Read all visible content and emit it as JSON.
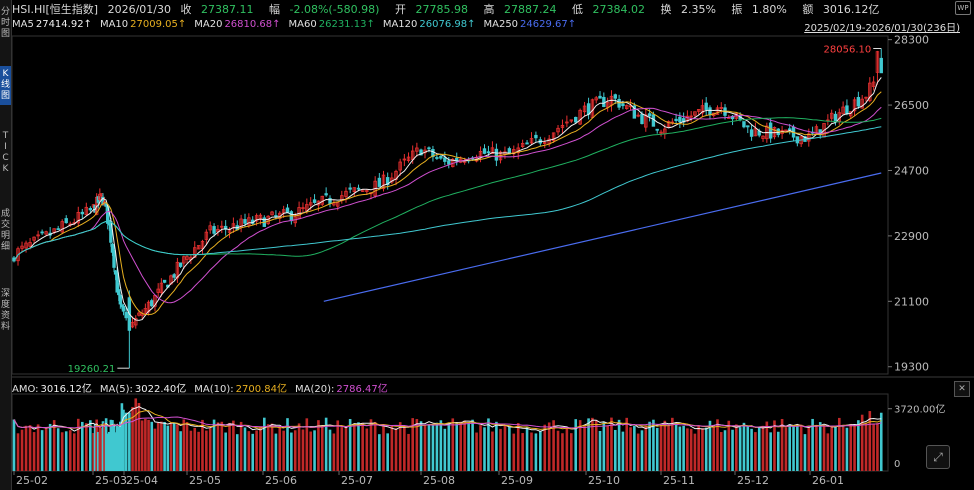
{
  "header": {
    "symbol": "HSI.HI[恒生指数]",
    "date": "2026/01/30",
    "close_label": "收",
    "close": "27387.11",
    "change_label": "幅",
    "change": "-2.08%(-580.98)",
    "open_label": "开",
    "open": "27785.98",
    "high_label": "高",
    "high": "27887.24",
    "low_label": "低",
    "low": "27384.02",
    "turnover_label": "换",
    "turnover": "2.35%",
    "amplitude_label": "振",
    "amplitude": "1.80%",
    "amount_label": "额",
    "amount": "3016.12亿"
  },
  "ma_legend": [
    {
      "label": "MA5",
      "value": "27414.92↑",
      "color": "#f0f0f0"
    },
    {
      "label": "MA10",
      "value": "27009.05↑",
      "color": "#e8b020"
    },
    {
      "label": "MA20",
      "value": "26810.68↑",
      "color": "#d050d0"
    },
    {
      "label": "MA60",
      "value": "26231.13↑",
      "color": "#20b060"
    },
    {
      "label": "MA120",
      "value": "26076.98↑",
      "color": "#40c8d0"
    },
    {
      "label": "MA250",
      "value": "24629.67↑",
      "color": "#4a6cf0"
    }
  ],
  "range_label": "2025/02/19-2026/01/30(236日)",
  "sidebar": [
    {
      "label": "分时图",
      "active": false
    },
    {
      "label": "K线图",
      "active": true
    },
    {
      "label": "TICK",
      "active": false
    },
    {
      "label": "成交明细",
      "active": false
    },
    {
      "label": "深度资料",
      "active": false
    }
  ],
  "amo_legend": [
    {
      "label": "AMO:",
      "value": "3016.12亿",
      "color": "#f0f0f0"
    },
    {
      "label": "MA(5):",
      "value": "3022.40亿",
      "color": "#f0f0f0"
    },
    {
      "label": "MA(10):",
      "value": "2700.84亿",
      "color": "#e8b020"
    },
    {
      "label": "MA(20):",
      "value": "2786.47亿",
      "color": "#d050d0"
    }
  ],
  "icons": {
    "top_right": "wp-logo-icon",
    "collapse": "close-icon",
    "expand": "expand-arrows-icon"
  },
  "chart_data": {
    "type": "candlestick",
    "y_ticks": [
      "28300",
      "26500",
      "24700",
      "22900",
      "21100",
      "19300"
    ],
    "ylim": [
      19100,
      28400
    ],
    "x_ticks": [
      "25-02",
      "25-03",
      "25-04",
      "25-05",
      "25-06",
      "25-07",
      "25-08",
      "25-09",
      "25-10",
      "25-11",
      "25-12",
      "26-01"
    ],
    "annotations": {
      "high": "28056.10",
      "low": "19260.21"
    },
    "close_series_approx": [
      {
        "m": 0,
        "v": 22400
      },
      {
        "m": 0.5,
        "v": 23000
      },
      {
        "m": 0.9,
        "v": 23500
      },
      {
        "m": 1.3,
        "v": 24000
      },
      {
        "m": 1.5,
        "v": 23300
      },
      {
        "m": 1.65,
        "v": 22400
      },
      {
        "m": 1.85,
        "v": 21000
      },
      {
        "m": 2.1,
        "v": 20400
      },
      {
        "m": 2.4,
        "v": 21000
      },
      {
        "m": 2.9,
        "v": 22100
      },
      {
        "m": 3.3,
        "v": 23000
      },
      {
        "m": 3.9,
        "v": 23300
      },
      {
        "m": 4.4,
        "v": 23500
      },
      {
        "m": 5.0,
        "v": 24000
      },
      {
        "m": 5.5,
        "v": 24300
      },
      {
        "m": 6.0,
        "v": 25300
      },
      {
        "m": 6.3,
        "v": 24900
      },
      {
        "m": 6.7,
        "v": 25200
      },
      {
        "m": 7.1,
        "v": 25100
      },
      {
        "m": 7.5,
        "v": 25600
      },
      {
        "m": 8.0,
        "v": 26400
      },
      {
        "m": 8.35,
        "v": 26700
      },
      {
        "m": 8.7,
        "v": 26200
      },
      {
        "m": 9.0,
        "v": 25900
      },
      {
        "m": 9.4,
        "v": 26200
      },
      {
        "m": 9.8,
        "v": 26500
      },
      {
        "m": 10.2,
        "v": 25800
      },
      {
        "m": 10.6,
        "v": 25700
      },
      {
        "m": 11.0,
        "v": 25600
      },
      {
        "m": 11.4,
        "v": 26300
      },
      {
        "m": 11.75,
        "v": 26800
      },
      {
        "m": 11.95,
        "v": 27400
      }
    ],
    "ma250_approx": [
      {
        "m": 4.8,
        "v": 21100
      },
      {
        "m": 11.95,
        "v": 24630
      }
    ],
    "volume_axis": {
      "ticks": [
        "3720.00亿",
        "0"
      ],
      "max": 4600
    }
  }
}
